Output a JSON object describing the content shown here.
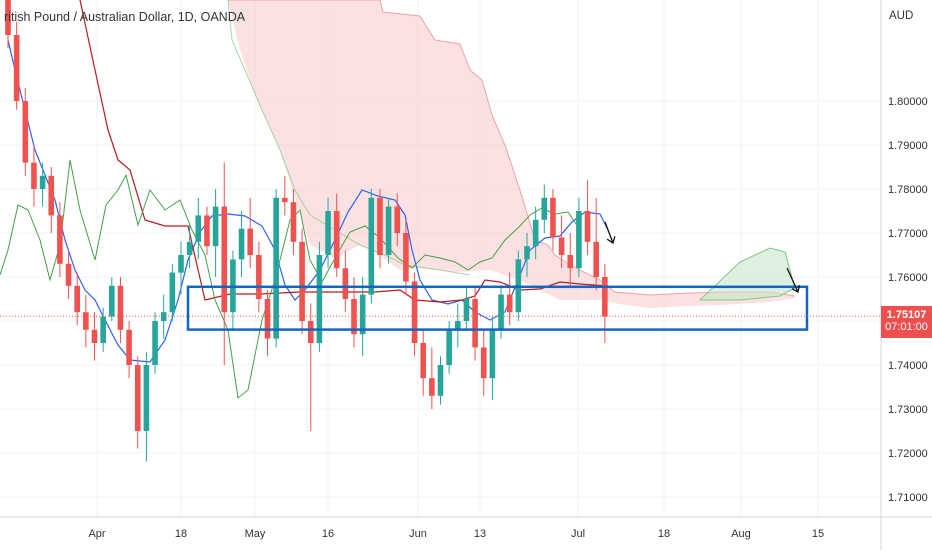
{
  "header": {
    "symbol_title": "ritish Pound / Australian Dollar, 1D, OANDA",
    "currency": "AUD"
  },
  "last_price": {
    "value": "1.75107",
    "countdown": "07:01:00",
    "color": "#ef4f4f"
  },
  "colors": {
    "up_candle": "#26a69a",
    "down_candle": "#ef5350",
    "tenkan": "#2962ff",
    "kijun": "#b71c1c",
    "chikou": "#43a047",
    "cloud_bear": "#f8c9c9",
    "cloud_bull": "#c8e6c9",
    "zone_box": "#1565c0"
  },
  "chart_data": {
    "type": "candlestick",
    "ylim": [
      1.705,
      1.825
    ],
    "y_ticks": [
      "1.71000",
      "1.72000",
      "1.73000",
      "1.74000",
      "1.75000",
      "1.76000",
      "1.77000",
      "1.78000",
      "1.79000",
      "1.80000"
    ],
    "x_ticks": [
      "Apr",
      "18",
      "May",
      "16",
      "Jun",
      "13",
      "Jul",
      "18",
      "Aug",
      "15"
    ],
    "candles": [
      [
        1.826,
        1.829,
        1.812,
        1.815
      ],
      [
        1.815,
        1.818,
        1.798,
        1.8
      ],
      [
        1.8,
        1.803,
        1.783,
        1.786
      ],
      [
        1.786,
        1.79,
        1.776,
        1.78
      ],
      [
        1.78,
        1.786,
        1.776,
        1.783
      ],
      [
        1.783,
        1.785,
        1.77,
        1.774
      ],
      [
        1.774,
        1.777,
        1.76,
        1.763
      ],
      [
        1.763,
        1.766,
        1.755,
        1.758
      ],
      [
        1.758,
        1.761,
        1.749,
        1.752
      ],
      [
        1.752,
        1.756,
        1.744,
        1.748
      ],
      [
        1.748,
        1.752,
        1.741,
        1.745
      ],
      [
        1.745,
        1.753,
        1.743,
        1.751
      ],
      [
        1.751,
        1.76,
        1.75,
        1.758
      ],
      [
        1.758,
        1.76,
        1.745,
        1.748
      ],
      [
        1.748,
        1.75,
        1.737,
        1.74
      ],
      [
        1.74,
        1.742,
        1.721,
        1.725
      ],
      [
        1.725,
        1.743,
        1.718,
        1.74
      ],
      [
        1.74,
        1.752,
        1.738,
        1.75
      ],
      [
        1.75,
        1.756,
        1.746,
        1.752
      ],
      [
        1.752,
        1.763,
        1.75,
        1.761
      ],
      [
        1.761,
        1.768,
        1.756,
        1.765
      ],
      [
        1.765,
        1.772,
        1.762,
        1.768
      ],
      [
        1.768,
        1.778,
        1.764,
        1.774
      ],
      [
        1.774,
        1.776,
        1.765,
        1.767
      ],
      [
        1.767,
        1.78,
        1.76,
        1.776
      ],
      [
        1.776,
        1.786,
        1.74,
        1.752
      ],
      [
        1.752,
        1.766,
        1.748,
        1.764
      ],
      [
        1.764,
        1.775,
        1.76,
        1.771
      ],
      [
        1.771,
        1.778,
        1.762,
        1.765
      ],
      [
        1.765,
        1.768,
        1.752,
        1.755
      ],
      [
        1.755,
        1.757,
        1.742,
        1.746
      ],
      [
        1.746,
        1.78,
        1.744,
        1.778
      ],
      [
        1.778,
        1.783,
        1.774,
        1.777
      ],
      [
        1.777,
        1.78,
        1.765,
        1.768
      ],
      [
        1.768,
        1.771,
        1.747,
        1.75
      ],
      [
        1.75,
        1.754,
        1.725,
        1.745
      ],
      [
        1.745,
        1.768,
        1.743,
        1.765
      ],
      [
        1.765,
        1.778,
        1.762,
        1.775
      ],
      [
        1.775,
        1.779,
        1.76,
        1.762
      ],
      [
        1.762,
        1.766,
        1.752,
        1.755
      ],
      [
        1.755,
        1.76,
        1.744,
        1.747
      ],
      [
        1.747,
        1.76,
        1.742,
        1.756
      ],
      [
        1.756,
        1.78,
        1.754,
        1.778
      ],
      [
        1.778,
        1.78,
        1.762,
        1.765
      ],
      [
        1.765,
        1.778,
        1.763,
        1.776
      ],
      [
        1.776,
        1.779,
        1.767,
        1.77
      ],
      [
        1.77,
        1.773,
        1.756,
        1.759
      ],
      [
        1.759,
        1.761,
        1.742,
        1.745
      ],
      [
        1.745,
        1.748,
        1.733,
        1.737
      ],
      [
        1.737,
        1.744,
        1.73,
        1.733
      ],
      [
        1.733,
        1.742,
        1.731,
        1.74
      ],
      [
        1.74,
        1.75,
        1.738,
        1.748
      ],
      [
        1.748,
        1.754,
        1.744,
        1.75
      ],
      [
        1.75,
        1.758,
        1.748,
        1.755
      ],
      [
        1.755,
        1.758,
        1.741,
        1.744
      ],
      [
        1.744,
        1.748,
        1.733,
        1.737
      ],
      [
        1.737,
        1.751,
        1.732,
        1.748
      ],
      [
        1.748,
        1.758,
        1.746,
        1.756
      ],
      [
        1.756,
        1.761,
        1.749,
        1.752
      ],
      [
        1.752,
        1.766,
        1.75,
        1.764
      ],
      [
        1.764,
        1.77,
        1.76,
        1.767
      ],
      [
        1.767,
        1.776,
        1.764,
        1.773
      ],
      [
        1.773,
        1.781,
        1.77,
        1.778
      ],
      [
        1.778,
        1.78,
        1.766,
        1.769
      ],
      [
        1.769,
        1.774,
        1.762,
        1.765
      ],
      [
        1.765,
        1.77,
        1.758,
        1.762
      ],
      [
        1.762,
        1.778,
        1.76,
        1.775
      ],
      [
        1.775,
        1.782,
        1.765,
        1.768
      ],
      [
        1.768,
        1.778,
        1.757,
        1.76
      ],
      [
        1.76,
        1.763,
        1.745,
        1.751
      ]
    ],
    "annotation_zone": {
      "y_top": 1.758,
      "y_bottom": 1.7485,
      "start_index": 32,
      "end_date_label": "15"
    },
    "reference_price": 1.75107
  }
}
